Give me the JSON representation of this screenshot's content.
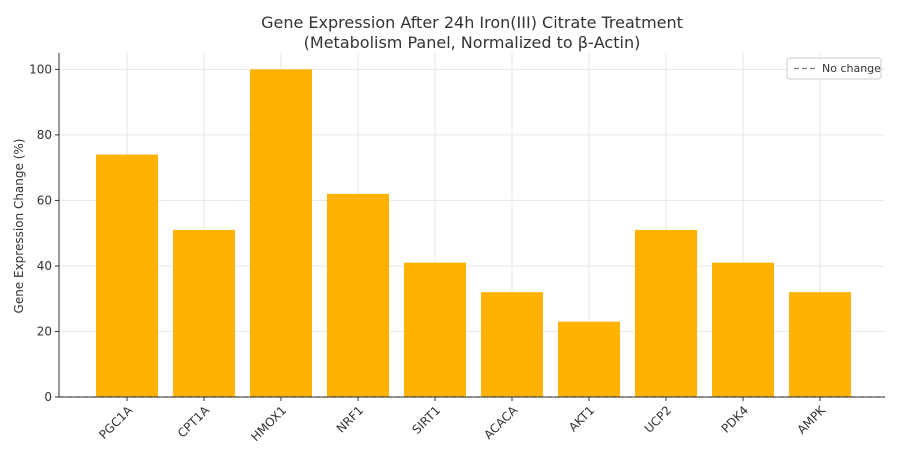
{
  "chart_data": {
    "type": "bar",
    "title_line1": "Gene Expression After 24h Iron(III) Citrate Treatment",
    "title_line2": "(Metabolism Panel, Normalized to β-Actin)",
    "xlabel": "",
    "ylabel": "Gene Expression Change (%)",
    "categories": [
      "PGC1A",
      "CPT1A",
      "HMOX1",
      "NRF1",
      "SIRT1",
      "ACACA",
      "AKT1",
      "UCP2",
      "PDK4",
      "AMPK"
    ],
    "values": [
      74,
      51,
      100,
      62,
      41,
      32,
      23,
      51,
      41,
      32
    ],
    "ylim": [
      0,
      105
    ],
    "yticks": [
      0,
      20,
      40,
      60,
      80,
      100
    ],
    "grid": true,
    "bar_color": "#FFB300",
    "reference_line": {
      "y": 0,
      "label": "No change",
      "style": "dashed",
      "color": "#808080"
    },
    "legend_position": "top-right"
  }
}
